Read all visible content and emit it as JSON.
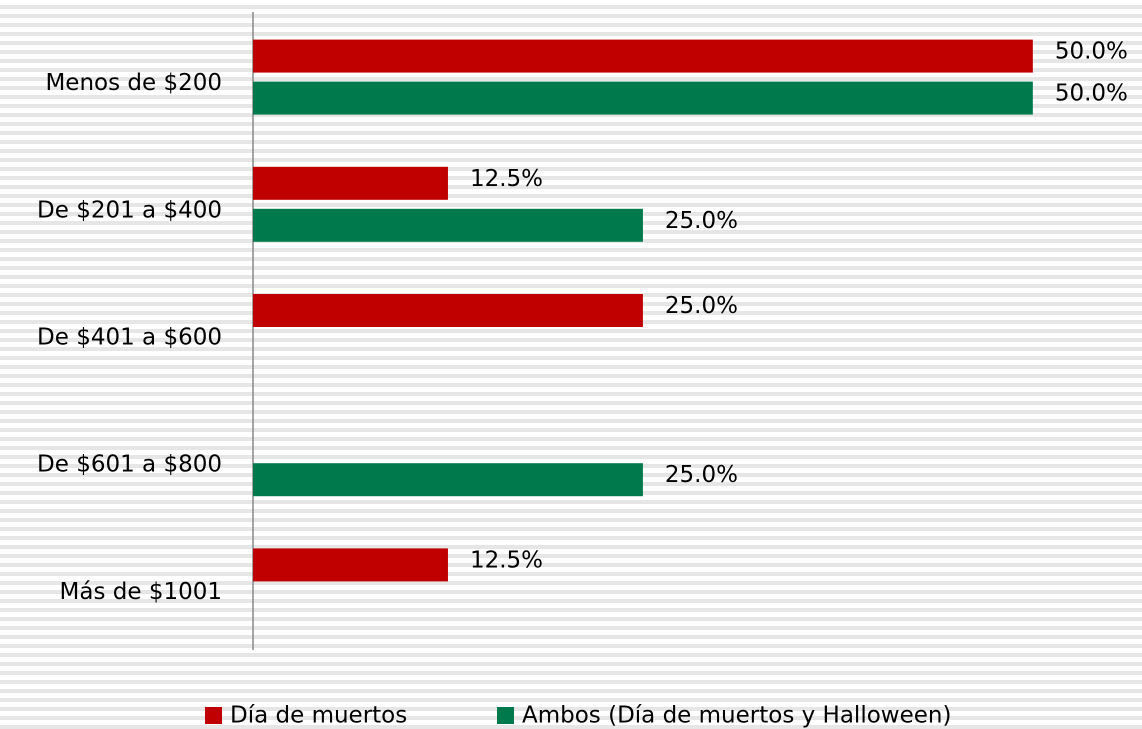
{
  "chart_data": {
    "type": "bar",
    "orientation": "horizontal",
    "categories": [
      "Menos de $200",
      "De $201 a $400",
      "De $401 a $600",
      "De $601 a $800",
      "Más de $1001"
    ],
    "series": [
      {
        "name": "Día de muertos",
        "color": "#c00000",
        "values": [
          50,
          12.5,
          25,
          null,
          12.5
        ],
        "value_labels": [
          "50.0%",
          "12.5%",
          "25.0%",
          null,
          "12.5%"
        ]
      },
      {
        "name": "Ambos (Día de muertos y Halloween)",
        "color": "#007a4d",
        "values": [
          50,
          25,
          null,
          25,
          null
        ],
        "value_labels": [
          "50.0%",
          "25.0%",
          null,
          "25.0%",
          null
        ]
      }
    ],
    "xlim": [
      0,
      57
    ],
    "legend": "bottom"
  }
}
